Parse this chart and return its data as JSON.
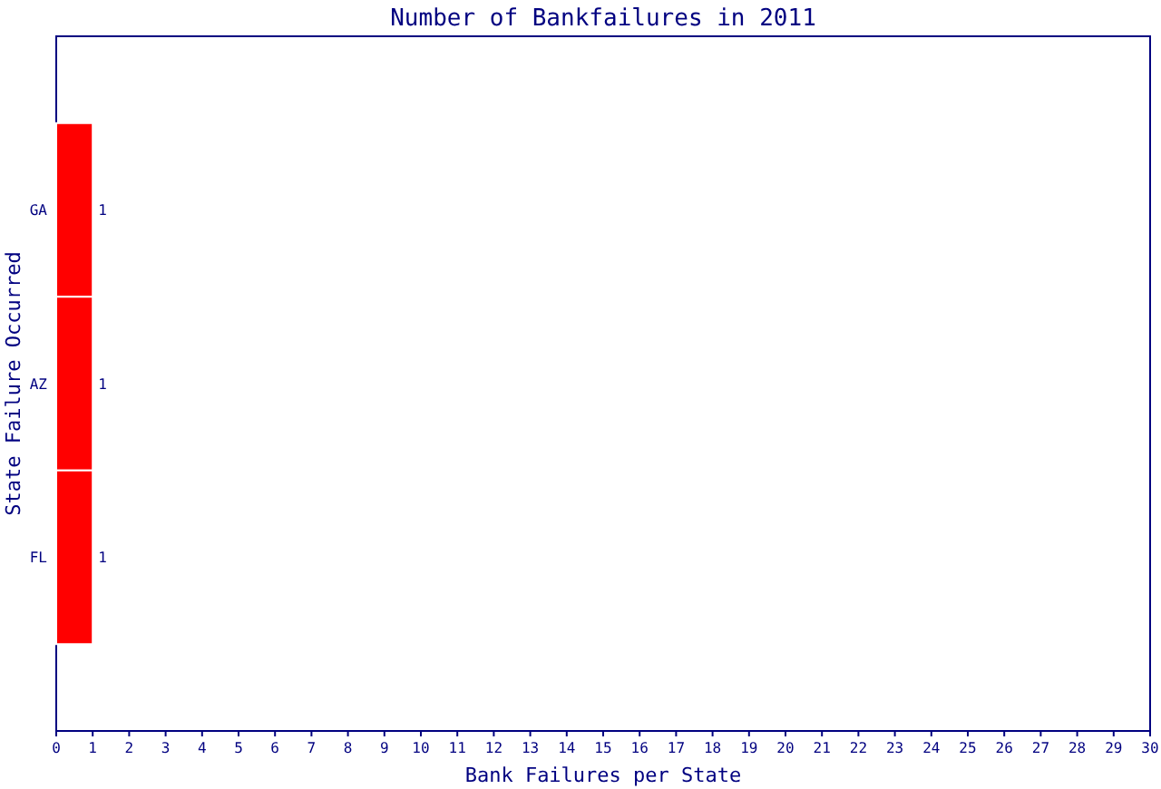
{
  "chart_data": {
    "type": "bar",
    "orientation": "horizontal",
    "title": "Number of Bankfailures in 2011",
    "xlabel": "Bank Failures per State",
    "ylabel": "State Failure Occurred",
    "categories": [
      "GA",
      "AZ",
      "FL"
    ],
    "values": [
      1,
      1,
      1
    ],
    "color": "#ff0000",
    "data_labels": true,
    "grid": false,
    "xlim": [
      0,
      30
    ],
    "xticks": [
      0,
      1,
      2,
      3,
      4,
      5,
      6,
      7,
      8,
      9,
      10,
      11,
      12,
      13,
      14,
      15,
      16,
      17,
      18,
      19,
      20,
      21,
      22,
      23,
      24,
      25,
      26,
      27,
      28,
      29,
      30
    ]
  }
}
